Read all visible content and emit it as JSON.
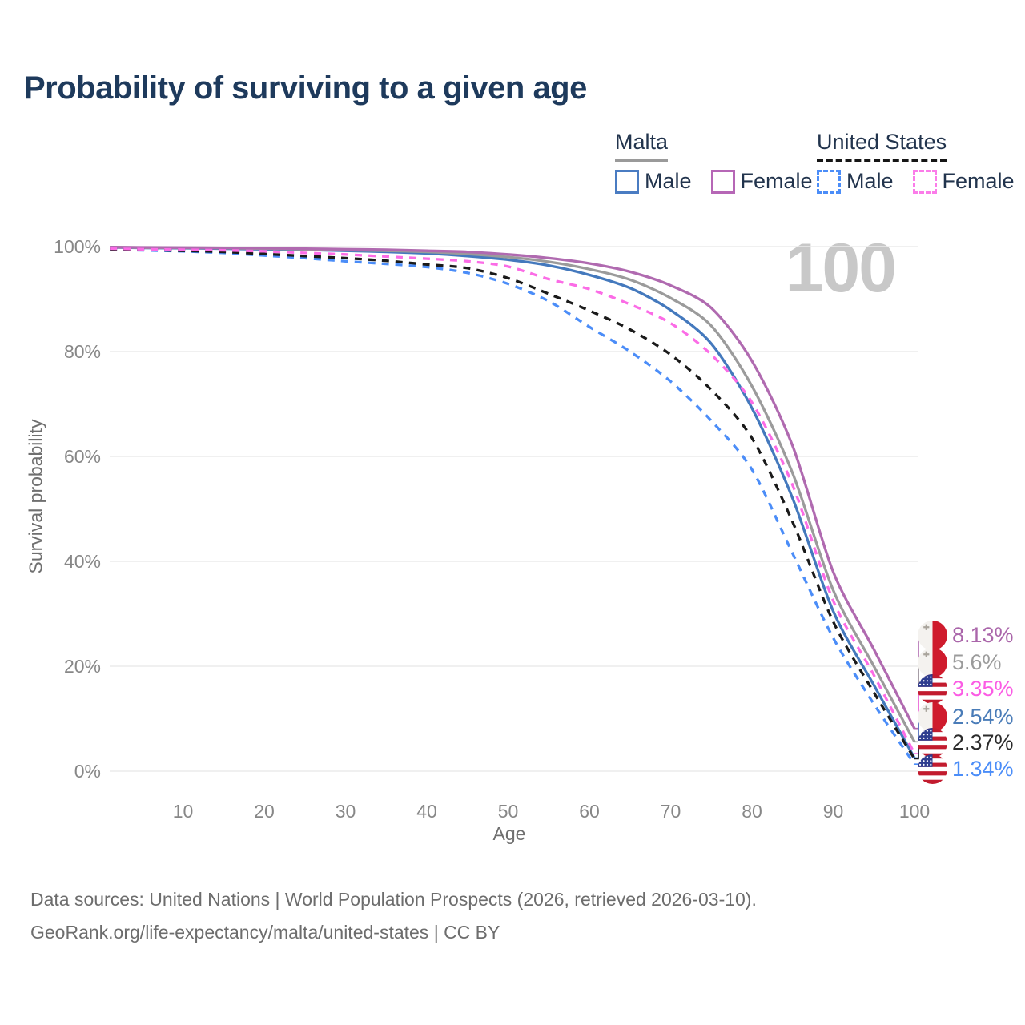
{
  "title": "Probability of surviving to a given age",
  "watermark_age": "100",
  "legend": {
    "groups": [
      {
        "id": "malta",
        "label": "Malta",
        "line_style": "solid",
        "underline_color": "#9a9a9a",
        "items": [
          {
            "label": "Male",
            "color": "#4a7cc2",
            "dash": false
          },
          {
            "label": "Female",
            "color": "#b667b6",
            "dash": false
          }
        ]
      },
      {
        "id": "us",
        "label": "United States",
        "line_style": "dashed",
        "underline_color": "#161616",
        "items": [
          {
            "label": "Male",
            "color": "#4b8df8",
            "dash": true
          },
          {
            "label": "Female",
            "color": "#fb7ce9",
            "dash": true
          }
        ]
      }
    ]
  },
  "chart_data": {
    "type": "line",
    "title": "Probability of surviving to a given age",
    "xlabel": "Age",
    "ylabel": "Survival probability",
    "xlim": [
      1,
      100
    ],
    "ylim": [
      0,
      100
    ],
    "grid": "horizontal",
    "legend_position": "top-right",
    "x_ticks": [
      {
        "v": 10,
        "label": "10"
      },
      {
        "v": 20,
        "label": "20"
      },
      {
        "v": 30,
        "label": "30"
      },
      {
        "v": 40,
        "label": "40"
      },
      {
        "v": 50,
        "label": "50"
      },
      {
        "v": 60,
        "label": "60"
      },
      {
        "v": 70,
        "label": "70"
      },
      {
        "v": 80,
        "label": "80"
      },
      {
        "v": 90,
        "label": "90"
      },
      {
        "v": 100,
        "label": "100"
      }
    ],
    "y_ticks": [
      {
        "v": 0,
        "label": "0%"
      },
      {
        "v": 20,
        "label": "20%"
      },
      {
        "v": 40,
        "label": "40%"
      },
      {
        "v": 60,
        "label": "60%"
      },
      {
        "v": 80,
        "label": "80%"
      },
      {
        "v": 100,
        "label": "100%"
      }
    ],
    "x": [
      1,
      5,
      10,
      15,
      20,
      25,
      30,
      35,
      40,
      45,
      50,
      55,
      60,
      65,
      70,
      75,
      80,
      85,
      90,
      95,
      100
    ],
    "series": [
      {
        "id": "malta-male",
        "name": "Malta Male",
        "country": "Malta",
        "sex": "Male",
        "flag": "malta",
        "color": "#4479bd",
        "dash": false,
        "end_label": "2.54%",
        "label_color": "#4a7cb8",
        "values": [
          99.85,
          99.75,
          99.7,
          99.6,
          99.5,
          99.4,
          99.2,
          99.0,
          98.7,
          98.2,
          97.5,
          96.4,
          94.6,
          92.1,
          87.9,
          81.5,
          69.2,
          52.0,
          30.5,
          16.4,
          2.54
        ]
      },
      {
        "id": "malta-all",
        "name": "Malta Both sexes",
        "country": "Malta",
        "sex": "Both",
        "flag": "malta",
        "color": "#9b9b9b",
        "dash": false,
        "end_label": "5.6%",
        "label_color": "#9b9b9b",
        "values": [
          99.9,
          99.8,
          99.75,
          99.7,
          99.6,
          99.5,
          99.35,
          99.2,
          99.0,
          98.6,
          98.0,
          97.1,
          95.7,
          93.7,
          90.2,
          84.9,
          73.4,
          56.8,
          34.5,
          20.0,
          5.6
        ]
      },
      {
        "id": "malta-female",
        "name": "Malta Female",
        "country": "Malta",
        "sex": "Female",
        "flag": "malta",
        "color": "#b06ab0",
        "dash": false,
        "end_label": "8.13%",
        "label_color": "#aa66aa",
        "values": [
          99.9,
          99.85,
          99.8,
          99.75,
          99.7,
          99.6,
          99.5,
          99.4,
          99.2,
          99.0,
          98.5,
          97.8,
          96.8,
          95.2,
          92.6,
          88.3,
          78.2,
          62.0,
          38.0,
          23.2,
          8.13
        ]
      },
      {
        "id": "us-male",
        "name": "United States Male",
        "country": "United States",
        "sex": "Male",
        "flag": "us",
        "color": "#4b8df8",
        "dash": true,
        "end_label": "1.34%",
        "label_color": "#4b8df8",
        "values": [
          99.4,
          99.3,
          99.1,
          98.8,
          98.3,
          97.8,
          97.2,
          96.7,
          96.1,
          95.0,
          92.9,
          89.6,
          84.7,
          80.0,
          74.3,
          66.8,
          57.5,
          41.5,
          25.4,
          12.8,
          1.34
        ]
      },
      {
        "id": "us-all",
        "name": "United States Both sexes",
        "country": "United States",
        "sex": "Both",
        "flag": "us",
        "color": "#1a1a1a",
        "dash": true,
        "end_label": "2.37%",
        "label_color": "#2b2b2b",
        "values": [
          99.5,
          99.4,
          99.2,
          99.0,
          98.6,
          98.2,
          97.8,
          97.3,
          96.6,
          95.9,
          94.0,
          91.0,
          87.8,
          84.2,
          79.4,
          72.7,
          63.5,
          47.5,
          28.5,
          15.0,
          2.37
        ]
      },
      {
        "id": "us-female",
        "name": "United States Female",
        "country": "United States",
        "sex": "Female",
        "flag": "us",
        "color": "#fb6ce6",
        "dash": true,
        "end_label": "3.35%",
        "label_color": "#fb5ce4",
        "values": [
          99.6,
          99.5,
          99.4,
          99.3,
          99.1,
          98.8,
          98.5,
          98.1,
          97.7,
          97.2,
          96.2,
          93.8,
          91.9,
          89.0,
          85.4,
          79.4,
          70.3,
          54.5,
          32.5,
          18.3,
          3.35
        ]
      }
    ]
  },
  "colors": {
    "title": "#1e3a5c",
    "gridline": "#ebebeb",
    "tick_label": "#878787",
    "axis_title": "#6f6f6f",
    "watermark": "#c8c8c8",
    "footer": "#6d6d6d"
  },
  "flags": {
    "malta": {
      "white": "#f4f2ef",
      "red": "#cf1b2d",
      "cross": "#a9a49c"
    },
    "us": {
      "red": "#c21b2e",
      "white": "#ffffff",
      "blue": "#2e3d8f",
      "stars": "#ffffff"
    }
  },
  "footer": {
    "line1": "Data sources: United Nations | World Population Prospects (2026, retrieved 2026-03-10).",
    "line2": "GeoRank.org/life-expectancy/malta/united-states | CC BY"
  }
}
